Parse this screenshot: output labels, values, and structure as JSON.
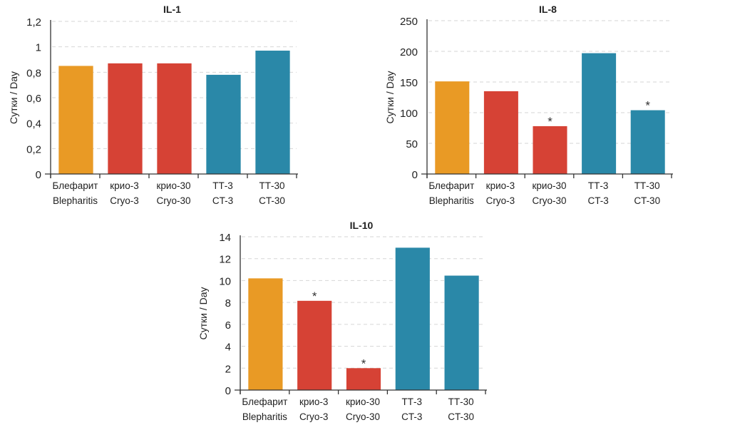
{
  "colors": {
    "blepharitis": "#E99A25",
    "cryo": "#D64235",
    "ct": "#2A88A8"
  },
  "chart_data": [
    {
      "type": "bar",
      "title": "IL-1",
      "xlabel": "",
      "ylabel": "Сутки / Day",
      "ylim": [
        0,
        1.2
      ],
      "yticks": [
        0,
        0.2,
        0.4,
        0.6,
        0.8,
        1,
        1.2
      ],
      "ytick_labels": [
        "0",
        "0,2",
        "0,4",
        "0,6",
        "0,8",
        "1",
        "1,2"
      ],
      "grid": true,
      "categories": [
        [
          "Блефарит",
          "Blepharitis"
        ],
        [
          "крио-3",
          "Cryo-3"
        ],
        [
          "крио-30",
          "Cryo-30"
        ],
        [
          "ТТ-3",
          "CT-3"
        ],
        [
          "ТТ-30",
          "CT-30"
        ]
      ],
      "values": [
        0.85,
        0.87,
        0.87,
        0.78,
        0.97
      ],
      "bar_groups": [
        "blepharitis",
        "cryo",
        "cryo",
        "ct",
        "ct"
      ],
      "significance": [
        false,
        false,
        false,
        false,
        false
      ],
      "significance_marker": "*"
    },
    {
      "type": "bar",
      "title": "IL-8",
      "xlabel": "",
      "ylabel": "Сутки / Day",
      "ylim": [
        0,
        250
      ],
      "yticks": [
        0,
        50,
        100,
        150,
        200,
        250
      ],
      "ytick_labels": [
        "0",
        "50",
        "100",
        "150",
        "200",
        "250"
      ],
      "grid": true,
      "categories": [
        [
          "Блефарит",
          "Blepharitis"
        ],
        [
          "крио-3",
          "Cryo-3"
        ],
        [
          "крио-30",
          "Cryo-30"
        ],
        [
          "ТТ-3",
          "CT-3"
        ],
        [
          "ТТ-30",
          "CT-30"
        ]
      ],
      "values": [
        151,
        135,
        78,
        197,
        104
      ],
      "bar_groups": [
        "blepharitis",
        "cryo",
        "cryo",
        "ct",
        "ct"
      ],
      "significance": [
        false,
        false,
        true,
        false,
        true
      ],
      "significance_marker": "*"
    },
    {
      "type": "bar",
      "title": "IL-10",
      "xlabel": "",
      "ylabel": "Сутки / Day",
      "ylim": [
        0,
        14
      ],
      "yticks": [
        0,
        2,
        4,
        6,
        8,
        10,
        12,
        14
      ],
      "ytick_labels": [
        "0",
        "2",
        "4",
        "6",
        "8",
        "10",
        "12",
        "14"
      ],
      "grid": true,
      "categories": [
        [
          "Блефарит",
          "Blepharitis"
        ],
        [
          "крио-3",
          "Cryo-3"
        ],
        [
          "крио-30",
          "Cryo-30"
        ],
        [
          "ТТ-3",
          "CT-3"
        ],
        [
          "ТТ-30",
          "CT-30"
        ]
      ],
      "values": [
        10.2,
        8.15,
        2.0,
        13.0,
        10.45
      ],
      "bar_groups": [
        "blepharitis",
        "cryo",
        "cryo",
        "ct",
        "ct"
      ],
      "significance": [
        false,
        true,
        true,
        false,
        false
      ],
      "significance_marker": "*"
    }
  ]
}
